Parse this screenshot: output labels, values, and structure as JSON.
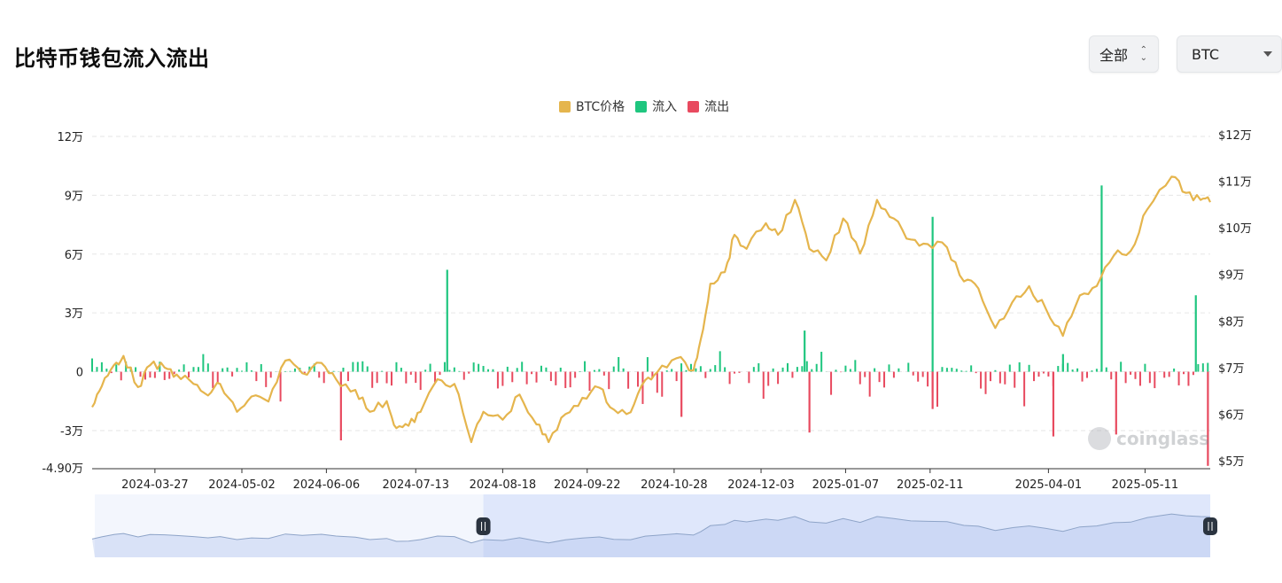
{
  "header": {
    "title": "比特币钱包流入流出",
    "range_select": "全部",
    "coin_select": "BTC"
  },
  "legend": [
    {
      "label": "BTC价格",
      "color": "#e5b54d"
    },
    {
      "label": "流入",
      "color": "#1fc67f"
    },
    {
      "label": "流出",
      "color": "#e84a5f"
    }
  ],
  "watermark": "coinglass",
  "colors": {
    "price": "#e5b54d",
    "inflow": "#1fc67f",
    "outflow": "#e84a5f",
    "grid": "#e6e6e6",
    "navigator_fill": "#dfe7fb"
  },
  "chart_data": {
    "type": "bar",
    "left_axis": {
      "ticks": [
        120000,
        90000,
        60000,
        30000,
        0,
        -30000,
        -49000
      ],
      "tick_labels": [
        "12万",
        "9万",
        "6万",
        "3万",
        "0",
        "-3万",
        "-4.90万"
      ],
      "range": [
        -49000,
        120000
      ]
    },
    "right_axis": {
      "ticks": [
        120000,
        110000,
        100000,
        90000,
        80000,
        70000,
        60000,
        50000
      ],
      "tick_labels": [
        "$12万",
        "$11万",
        "$10万",
        "$9万",
        "$8万",
        "$7万",
        "$6万",
        "$5万"
      ],
      "range": [
        50000,
        120000
      ]
    },
    "x_tick_labels": [
      "2024-03-27",
      "2024-05-02",
      "2024-06-06",
      "2024-07-13",
      "2024-08-18",
      "2024-09-22",
      "2024-10-28",
      "2024-12-03",
      "2025-01-07",
      "2025-02-11",
      "2025-04-01",
      "2025-05-11"
    ],
    "x_range": [
      "2024-03-01",
      "2025-06-07"
    ],
    "grid": true,
    "legend_position": "top-center",
    "price_series": {
      "name": "BTC价格",
      "dates": [
        "2024-03-01",
        "2024-03-05",
        "2024-03-10",
        "2024-03-14",
        "2024-03-20",
        "2024-03-25",
        "2024-03-31",
        "2024-04-05",
        "2024-04-12",
        "2024-04-18",
        "2024-04-23",
        "2024-04-30",
        "2024-05-06",
        "2024-05-13",
        "2024-05-20",
        "2024-05-27",
        "2024-06-04",
        "2024-06-10",
        "2024-06-18",
        "2024-06-24",
        "2024-07-01",
        "2024-07-05",
        "2024-07-10",
        "2024-07-15",
        "2024-07-22",
        "2024-07-29",
        "2024-08-05",
        "2024-08-10",
        "2024-08-18",
        "2024-08-25",
        "2024-09-01",
        "2024-09-06",
        "2024-09-13",
        "2024-09-20",
        "2024-09-27",
        "2024-10-03",
        "2024-10-10",
        "2024-10-16",
        "2024-10-21",
        "2024-10-29",
        "2024-11-05",
        "2024-11-08",
        "2024-11-12",
        "2024-11-18",
        "2024-11-22",
        "2024-11-27",
        "2024-12-05",
        "2024-12-10",
        "2024-12-17",
        "2024-12-23",
        "2024-12-30",
        "2025-01-06",
        "2025-01-13",
        "2025-01-20",
        "2025-01-27",
        "2025-02-03",
        "2025-02-10",
        "2025-02-18",
        "2025-02-25",
        "2025-03-03",
        "2025-03-10",
        "2025-03-17",
        "2025-03-24",
        "2025-03-31",
        "2025-04-07",
        "2025-04-14",
        "2025-04-21",
        "2025-04-28",
        "2025-05-05",
        "2025-05-12",
        "2025-05-22",
        "2025-05-28",
        "2025-06-03",
        "2025-06-07"
      ],
      "values": [
        61500,
        66000,
        70500,
        72500,
        65800,
        70500,
        70000,
        68500,
        66500,
        64000,
        66500,
        60500,
        63800,
        62700,
        71500,
        68800,
        71000,
        67500,
        65200,
        60500,
        62800,
        57000,
        57500,
        60500,
        67500,
        66500,
        54000,
        60500,
        58800,
        64200,
        57800,
        54000,
        60000,
        63500,
        65700,
        61000,
        60400,
        67300,
        69000,
        72000,
        69400,
        76000,
        88000,
        90500,
        98500,
        95500,
        101000,
        98500,
        106000,
        95500,
        93000,
        102000,
        94500,
        106000,
        102000,
        97500,
        96500,
        95800,
        88500,
        87000,
        78500,
        84000,
        87500,
        82500,
        76800,
        85500,
        87500,
        94000,
        95000,
        104000,
        111000,
        107500,
        106000,
        105500
      ]
    },
    "flow_series": {
      "inflow_name": "流入",
      "outflow_name": "流出",
      "notable_inflows": [
        {
          "date": "2024-07-26",
          "value": 52000
        },
        {
          "date": "2024-12-21",
          "value": 21000
        },
        {
          "date": "2025-02-12",
          "value": 79000
        },
        {
          "date": "2025-04-07",
          "value": 9000
        },
        {
          "date": "2025-04-23",
          "value": 95000
        },
        {
          "date": "2025-06-01",
          "value": 39000
        }
      ],
      "notable_outflows": [
        {
          "date": "2024-06-12",
          "value": -35000
        },
        {
          "date": "2024-10-31",
          "value": -23000
        },
        {
          "date": "2024-12-23",
          "value": -31000
        },
        {
          "date": "2025-02-12",
          "value": -19000
        },
        {
          "date": "2025-04-03",
          "value": -33000
        },
        {
          "date": "2025-04-29",
          "value": -32000
        },
        {
          "date": "2025-06-06",
          "value": -48000
        }
      ]
    },
    "navigator": {
      "selection_start": "2024-08-10",
      "selection_end": "2025-06-07"
    }
  }
}
